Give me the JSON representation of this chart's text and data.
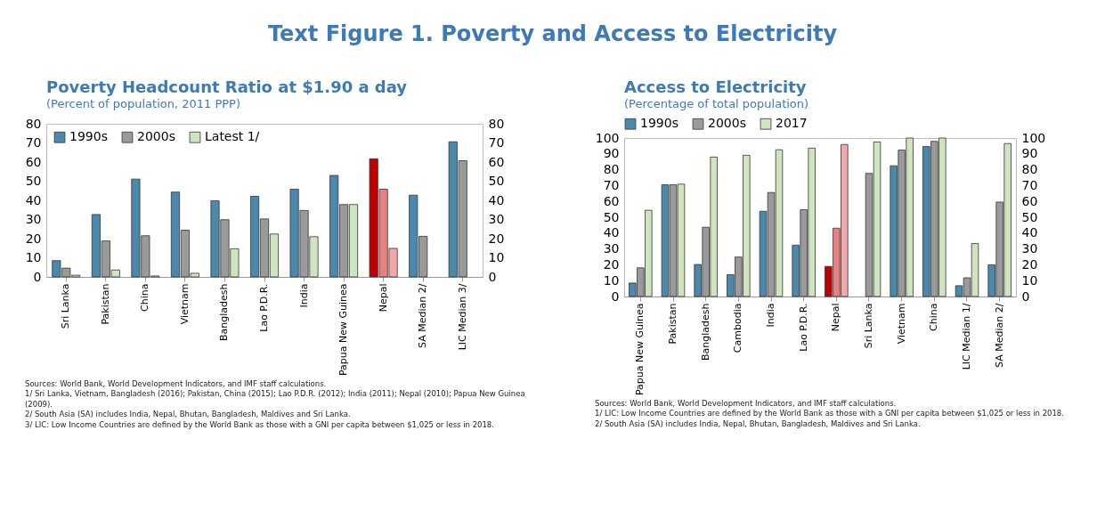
{
  "chart_data": [
    {
      "type": "bar",
      "title": "Poverty Headcount Ratio at $1.90 a day",
      "subtitle": "(Percent of population, 2011 PPP)",
      "categories": [
        "Sri Lanka",
        "Pakistan",
        "China",
        "Vietnam",
        "Bangladesh",
        "Lao P.D.R.",
        "India",
        "Papua New Guinea",
        "Nepal",
        "SA Median 2/",
        "LIC Median 3/"
      ],
      "series": [
        {
          "name": "1990s",
          "color": "#4a89ac",
          "colors": [
            "#4a89ac",
            "#4a89ac",
            "#4a89ac",
            "#4a89ac",
            "#4a89ac",
            "#4a89ac",
            "#4a89ac",
            "#4a89ac",
            "#c00000",
            "#4a89ac",
            "#4a89ac"
          ],
          "values": [
            8.5,
            32.6,
            51.1,
            44.3,
            39.8,
            42.1,
            45.8,
            53.0,
            61.7,
            42.7,
            70.6
          ]
        },
        {
          "name": "2000s",
          "color": "#9a9a9a",
          "colors": [
            "#9a9a9a",
            "#9a9a9a",
            "#9a9a9a",
            "#9a9a9a",
            "#9a9a9a",
            "#9a9a9a",
            "#9a9a9a",
            "#9a9a9a",
            "#e88080",
            "#9a9a9a",
            "#9a9a9a"
          ],
          "values": [
            4.6,
            18.8,
            21.5,
            24.4,
            29.9,
            30.3,
            34.7,
            37.8,
            45.8,
            21.2,
            60.7
          ]
        },
        {
          "name": "Latest 1/",
          "color": "#cfe5bf",
          "colors": [
            "#cfe5bf",
            "#cfe5bf",
            "#cfe5bf",
            "#cfe5bf",
            "#cfe5bf",
            "#cfe5bf",
            "#cfe5bf",
            "#cfe5bf",
            "#f2a8a8",
            "#cfe5bf",
            "#cfe5bf"
          ],
          "values": [
            0.9,
            3.6,
            0.5,
            1.9,
            14.7,
            22.4,
            21.0,
            37.8,
            14.9,
            null,
            null
          ]
        }
      ],
      "ylim": [
        0,
        80
      ],
      "yticks": [
        0,
        10,
        20,
        30,
        40,
        50,
        60,
        70,
        80
      ],
      "y2lim": [
        0,
        80
      ],
      "y2ticks": [
        0,
        10,
        20,
        30,
        40,
        50,
        60,
        70,
        80
      ],
      "grid": false,
      "legend": "top left",
      "annotations": [
        "Text Figure 1. Poverty and Access to Electricity",
        "Sources: World Bank, World Development Indicators, and IMF staff calculations.",
        "1/ Sri Lanka, Vietnam, Bangladesh (2016); Pakistan, China (2015); Lao P.D.R. (2012); India (2011); Nepal (2010); Papua New Guinea (2009).",
        "2/ South Asia (SA) includes India, Nepal, Bhutan, Bangladesh, Maldives and Sri Lanka.",
        "3/ LIC: Low Income Countries are defined by the World Bank as those with a GNI per capita between $1,025 or less in 2018."
      ]
    },
    {
      "type": "bar",
      "title": "Access to Electricity",
      "subtitle": "(Percentage of total population)",
      "categories": [
        "Papua New Guinea",
        "Pakistan",
        "Bangladesh",
        "Cambodia",
        "India",
        "Lao P.D.R.",
        "Nepal",
        "Sri Lanka",
        "Vietnam",
        "China",
        "LIC Median 1/",
        "SA Median 2/"
      ],
      "series": [
        {
          "name": "1990s",
          "color": "#4a89ac",
          "colors": [
            "#4a89ac",
            "#4a89ac",
            "#4a89ac",
            "#4a89ac",
            "#4a89ac",
            "#4a89ac",
            "#c00000",
            "#4a89ac",
            "#4a89ac",
            "#4a89ac",
            "#4a89ac",
            "#4a89ac"
          ],
          "values": [
            8.5,
            70.5,
            20.2,
            13.8,
            53.8,
            32.4,
            19.0,
            null,
            82.5,
            94.6,
            6.8,
            20.0
          ]
        },
        {
          "name": "2000s",
          "color": "#9a9a9a",
          "colors": [
            "#9a9a9a",
            "#9a9a9a",
            "#9a9a9a",
            "#9a9a9a",
            "#9a9a9a",
            "#9a9a9a",
            "#e88080",
            "#9a9a9a",
            "#9a9a9a",
            "#9a9a9a",
            "#9a9a9a",
            "#9a9a9a"
          ],
          "values": [
            18.1,
            70.5,
            43.7,
            24.9,
            65.6,
            54.8,
            43.1,
            77.7,
            92.4,
            97.9,
            11.8,
            59.6
          ]
        },
        {
          "name": "2017",
          "color": "#cfe5bf",
          "colors": [
            "#cfe5bf",
            "#cfe5bf",
            "#cfe5bf",
            "#cfe5bf",
            "#cfe5bf",
            "#cfe5bf",
            "#f2a8a8",
            "#cfe5bf",
            "#cfe5bf",
            "#cfe5bf",
            "#cfe5bf",
            "#cfe5bf"
          ],
          "values": [
            54.4,
            70.9,
            88.0,
            89.1,
            92.6,
            93.6,
            95.9,
            97.5,
            100,
            100,
            33.4,
            96.5
          ]
        }
      ],
      "ylim": [
        0,
        100
      ],
      "yticks": [
        0,
        10,
        20,
        30,
        40,
        50,
        60,
        70,
        80,
        90,
        100
      ],
      "y2lim": [
        0,
        100
      ],
      "y2ticks": [
        0,
        10,
        20,
        30,
        40,
        50,
        60,
        70,
        80,
        90,
        100
      ],
      "grid": false,
      "legend": "top",
      "annotations": [
        "Sources: World Bank, World Development Indicators, and IMF staff calculations.",
        "1/ LIC: Low Income Countries are defined by the World Bank as those with a GNI per capita between $1,025 or less in 2018.",
        "2/ South Asia (SA) includes India, Nepal, Bhutan, Bangladesh, Maldives and Sri Lanka."
      ]
    }
  ]
}
